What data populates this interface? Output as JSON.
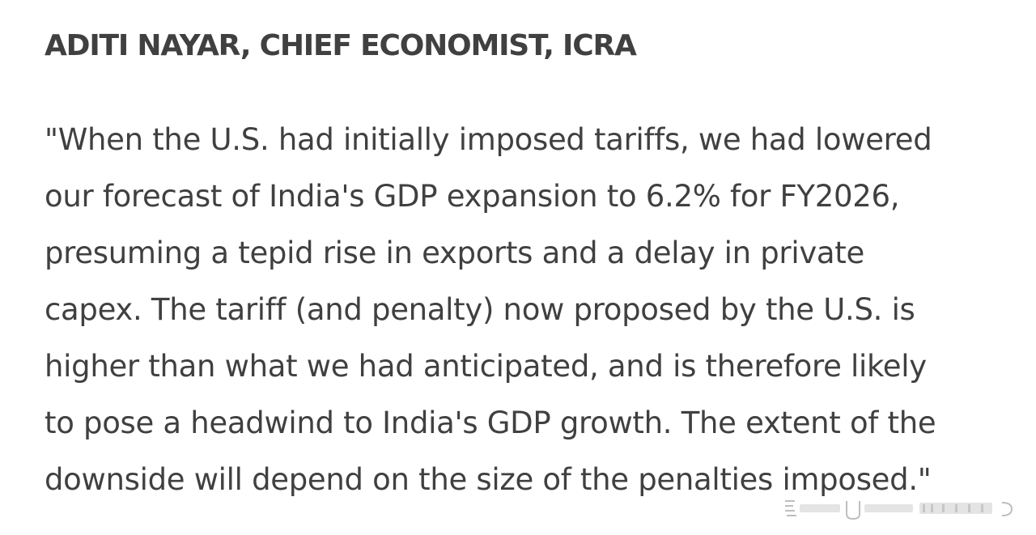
{
  "article": {
    "heading": "ADITI NAYAR, CHIEF ECONOMIST, ICRA",
    "quote_lines": [
      "\"When the U.S. had initially imposed tariffs, we had lowered",
      "our forecast of India's GDP expansion to 6.2% for FY2026,",
      "presuming a tepid rise in exports and a delay in private",
      "capex. The tariff (and penalty) now proposed by the U.S. is",
      "higher than what we had anticipated, and is therefore likely",
      "to pose a headwind to India's GDP growth. The extent of the",
      "downside will depend on the size of the penalties imposed.\""
    ]
  },
  "watermark": {
    "icon": "platform-watermark-icon"
  }
}
